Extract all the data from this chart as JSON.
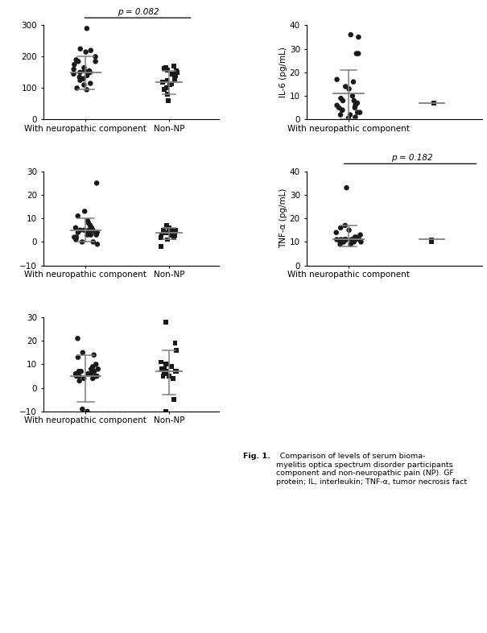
{
  "panel1": {
    "ylabel": "",
    "ylim": [
      0,
      300
    ],
    "yticks": [
      0,
      100,
      200,
      300
    ],
    "group1_points": [
      290,
      220,
      225,
      215,
      200,
      185,
      190,
      185,
      175,
      165,
      160,
      155,
      155,
      150,
      150,
      148,
      145,
      140,
      135,
      130,
      125,
      115,
      110,
      100,
      95
    ],
    "group1_mean": 150,
    "group1_upper": 202,
    "group1_lower": 95,
    "group2_points": [
      170,
      165,
      162,
      158,
      155,
      150,
      145,
      140,
      130,
      125,
      120,
      115,
      110,
      100,
      95,
      80,
      60
    ],
    "group2_mean": 120,
    "group2_upper": 155,
    "group2_lower": 80,
    "pval": "p = 0.082",
    "pval_show": true,
    "xlabel1": "With neuropathic component",
    "xlabel2": "Non-NP"
  },
  "panel2": {
    "ylabel": "IL-6 (pg/mL)",
    "ylim": [
      0,
      40
    ],
    "yticks": [
      0,
      10,
      20,
      30,
      40
    ],
    "group1_points": [
      36,
      35,
      28,
      28,
      17,
      16,
      14,
      13,
      10,
      9,
      8,
      8,
      7,
      7,
      6,
      6,
      5,
      5,
      4,
      4,
      3,
      3,
      2,
      2,
      1,
      0.5
    ],
    "group1_mean": 11,
    "group1_upper": 21,
    "group1_lower": 0,
    "group2_points": [
      7
    ],
    "group2_mean": 7,
    "group2_upper": 7,
    "group2_lower": 7,
    "pval": "",
    "pval_show": false,
    "xlabel1": "With neuropathic component",
    "xlabel2": ""
  },
  "panel3": {
    "ylabel": "",
    "ylim": [
      -10,
      30
    ],
    "yticks": [
      -10,
      0,
      10,
      20,
      30
    ],
    "group1_points": [
      25,
      13,
      11,
      9,
      8,
      7,
      6,
      6,
      5,
      5,
      5,
      5,
      5,
      4,
      4,
      4,
      4,
      3,
      3,
      3,
      2,
      2,
      1,
      0,
      0,
      -1
    ],
    "group1_mean": 5,
    "group1_upper": 10,
    "group1_lower": 0,
    "group2_points": [
      7,
      6,
      5,
      5,
      5,
      4,
      4,
      4,
      3,
      3,
      3,
      2,
      2,
      1,
      -2
    ],
    "group2_mean": 4,
    "group2_upper": 6,
    "group2_lower": 1,
    "pval": "",
    "pval_show": false,
    "xlabel1": "With neuropathic component",
    "xlabel2": "Non-NP"
  },
  "panel4": {
    "ylabel": "TNF-α (pg/mL)",
    "ylim": [
      0,
      40
    ],
    "yticks": [
      0,
      10,
      20,
      30,
      40
    ],
    "group1_points": [
      33,
      17,
      16,
      15,
      14,
      13,
      12,
      12,
      11,
      11,
      11,
      11,
      11,
      11,
      11,
      11,
      11,
      10,
      10,
      10,
      10,
      10,
      10,
      9,
      9
    ],
    "group1_mean": 11,
    "group1_upper": 17,
    "group1_lower": 8,
    "group2_points": [
      11,
      10
    ],
    "group2_mean": 11,
    "group2_upper": 11,
    "group2_lower": 11,
    "pval": "p = 0.182",
    "pval_show": true,
    "xlabel1": "With neuropathic component",
    "xlabel2": ""
  },
  "panel5": {
    "ylabel": "",
    "ylim": [
      -10,
      30
    ],
    "yticks": [
      -10,
      0,
      10,
      20,
      30
    ],
    "group1_points": [
      21,
      15,
      14,
      13,
      10,
      9,
      8,
      8,
      7,
      7,
      7,
      6,
      6,
      6,
      5,
      5,
      5,
      5,
      4,
      4,
      3,
      -9,
      -10
    ],
    "group1_mean": 5,
    "group1_upper": 14,
    "group1_lower": -6,
    "group2_points": [
      28,
      19,
      16,
      11,
      10,
      10,
      9,
      8,
      8,
      7,
      7,
      7,
      7,
      6,
      6,
      5,
      5,
      4,
      -5,
      -10
    ],
    "group2_mean": 7,
    "group2_upper": 16,
    "group2_lower": -3,
    "pval": "",
    "pval_show": false,
    "xlabel1": "With neuropathic component",
    "xlabel2": "Non-NP"
  },
  "dot_color": "#1a1a1a",
  "line_color": "#808080",
  "font_size": 7.5,
  "caption": "Fig. 1. Comparison of levels of serum bioma-\nmyelitis optica spectrum disorder participants\ncomponent and non-neuropathic pain (NP). GF\nprotein; IL, interleukin; TNF-α, tumor necrosis fact"
}
